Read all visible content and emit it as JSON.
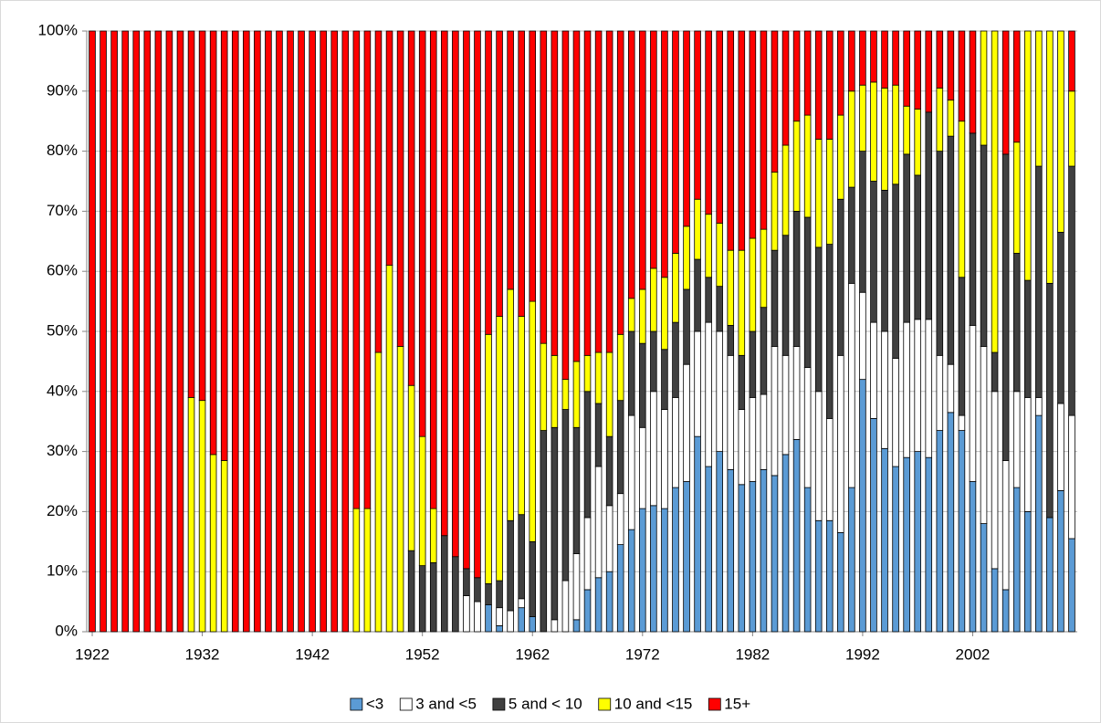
{
  "chart_data": {
    "type": "stacked_bar_100",
    "categories": [
      "1922",
      null,
      null,
      null,
      null,
      null,
      null,
      null,
      null,
      null,
      "1932",
      null,
      null,
      null,
      null,
      null,
      null,
      null,
      null,
      null,
      "1942",
      null,
      null,
      null,
      null,
      null,
      null,
      null,
      null,
      null,
      "1952",
      null,
      null,
      null,
      null,
      null,
      null,
      null,
      null,
      null,
      "1962",
      null,
      null,
      null,
      null,
      null,
      null,
      null,
      null,
      null,
      "1972",
      null,
      null,
      null,
      null,
      null,
      null,
      null,
      null,
      null,
      "1982",
      null,
      null,
      null,
      null,
      null,
      null,
      null,
      null,
      null,
      "1992",
      null,
      null,
      null,
      null,
      null,
      null,
      null,
      null,
      null,
      "2002",
      null,
      null,
      null,
      null,
      null,
      null,
      null,
      null,
      null
    ],
    "series": [
      {
        "name": "<3",
        "color": "#5b9bd5",
        "values": [
          0,
          0,
          0,
          0,
          0,
          0,
          0,
          0,
          0,
          0,
          0,
          0,
          0,
          0,
          0,
          0,
          0,
          0,
          0,
          0,
          0,
          0,
          0,
          0,
          0,
          0,
          0,
          0,
          0,
          0,
          0,
          0,
          0,
          0,
          0,
          0,
          4.5,
          1,
          0,
          4,
          2.5,
          0,
          0,
          0,
          2,
          7,
          9,
          10,
          14.5,
          17,
          20.5,
          21,
          20.5,
          24,
          25,
          32.5,
          27.5,
          30,
          27,
          24.5,
          25,
          27,
          26,
          29.5,
          32,
          24,
          18.5,
          18.5,
          16.5,
          24,
          42,
          35.5,
          30.5,
          27.5,
          29,
          30,
          29,
          33.5,
          36.5,
          33.5,
          25,
          18,
          10.5,
          7,
          24,
          20,
          36,
          19,
          23.5,
          15.5
        ]
      },
      {
        "name": "3 and <5",
        "color": "#ffffff",
        "values": [
          0,
          0,
          0,
          0,
          0,
          0,
          0,
          0,
          0,
          0,
          0,
          0,
          0,
          0,
          0,
          0,
          0,
          0,
          0,
          0,
          0,
          0,
          0,
          0,
          0,
          0,
          0,
          0,
          0,
          0,
          0,
          0,
          0,
          0,
          6,
          5,
          0,
          3,
          3.5,
          1.5,
          0,
          0,
          2,
          8.5,
          11,
          12,
          18.5,
          11,
          8.5,
          19,
          13.5,
          19,
          16.5,
          15,
          19.5,
          17.5,
          24,
          20,
          19,
          12.5,
          14,
          12.5,
          21.5,
          16.5,
          15.5,
          20,
          21.5,
          17,
          29.5,
          34,
          14.5,
          16,
          19.5,
          18,
          22.5,
          22,
          23,
          12.5,
          8,
          2.5,
          26,
          29.5,
          29.5,
          21.5,
          16,
          19,
          3,
          0,
          14.5,
          20.5
        ]
      },
      {
        "name": "5 and < 10",
        "color": "#404040",
        "values": [
          0,
          0,
          0,
          0,
          0,
          0,
          0,
          0,
          0,
          0,
          0,
          0,
          0,
          0,
          0,
          0,
          0,
          0,
          0,
          0,
          0,
          0,
          0,
          0,
          0,
          0,
          0,
          0,
          0,
          13.5,
          11,
          11.5,
          16,
          12.5,
          4.5,
          4,
          3.5,
          4.5,
          15,
          14,
          12.5,
          33.5,
          32,
          28.5,
          21,
          21,
          10.5,
          11.5,
          15.5,
          14,
          14,
          10,
          10,
          12.5,
          12.5,
          12,
          7.5,
          7.5,
          5,
          9,
          11,
          14.5,
          16,
          20,
          22.5,
          25,
          24,
          29,
          26,
          16,
          23.5,
          23.5,
          23.5,
          29,
          28,
          24,
          34.5,
          34,
          38,
          23,
          32,
          33.5,
          6.5,
          51,
          23,
          19.5,
          38.5,
          39,
          28.5,
          41.5
        ]
      },
      {
        "name": "10 and <15",
        "color": "#ffff00",
        "values": [
          0,
          0,
          0,
          0,
          0,
          0,
          0,
          0,
          0,
          39,
          38.5,
          29.5,
          28.5,
          0,
          0,
          0,
          0,
          0,
          0,
          0,
          0,
          0,
          0,
          0,
          20.5,
          20.5,
          46.5,
          61,
          47.5,
          27.5,
          21.5,
          9,
          0,
          0,
          0,
          0,
          41.5,
          44,
          38.5,
          33,
          40,
          14.5,
          12,
          5,
          11,
          6,
          8.5,
          14,
          11,
          5.5,
          9,
          10.5,
          12,
          11.5,
          10.5,
          10,
          10.5,
          10.5,
          12.5,
          17.5,
          15.5,
          13,
          13,
          15,
          15,
          17,
          18,
          17.5,
          14,
          16,
          11,
          16.5,
          17,
          16.5,
          8,
          11,
          0,
          10.5,
          6,
          26,
          0,
          19,
          53.5,
          0,
          18.5,
          41.5,
          22.5,
          42,
          33.5,
          12.5
        ]
      },
      {
        "name": "15+",
        "color": "#ff0000",
        "values": [
          100,
          100,
          100,
          100,
          100,
          100,
          100,
          100,
          100,
          61,
          61.5,
          70.5,
          71.5,
          100,
          100,
          100,
          100,
          100,
          100,
          100,
          100,
          100,
          100,
          100,
          79.5,
          79.5,
          53.5,
          39,
          52.5,
          59,
          67.5,
          79.5,
          84,
          87.5,
          89.5,
          91,
          50.5,
          47.5,
          43,
          47.5,
          45,
          52,
          54,
          58,
          55,
          54,
          53.5,
          53.5,
          50.5,
          44.5,
          43,
          39.5,
          41,
          37,
          32.5,
          28,
          30.5,
          32,
          36.5,
          36.5,
          34.5,
          33,
          23.5,
          19,
          15,
          14,
          18,
          18,
          14,
          10,
          9,
          8.5,
          9.5,
          9,
          12.5,
          13,
          13.5,
          9.5,
          11.5,
          15,
          17,
          0,
          0,
          20.5,
          18.5,
          0,
          0,
          0,
          0,
          10
        ]
      }
    ],
    "ylim": [
      0,
      100
    ],
    "yticks": [
      {
        "value": 0,
        "label": "0%"
      },
      {
        "value": 10,
        "label": "10%"
      },
      {
        "value": 20,
        "label": "20%"
      },
      {
        "value": 30,
        "label": "30%"
      },
      {
        "value": 40,
        "label": "40%"
      },
      {
        "value": 50,
        "label": "50%"
      },
      {
        "value": 60,
        "label": "60%"
      },
      {
        "value": 70,
        "label": "70%"
      },
      {
        "value": 80,
        "label": "80%"
      },
      {
        "value": 90,
        "label": "90%"
      },
      {
        "value": 100,
        "label": "100%"
      }
    ],
    "grid": true,
    "legend": "bottom"
  }
}
